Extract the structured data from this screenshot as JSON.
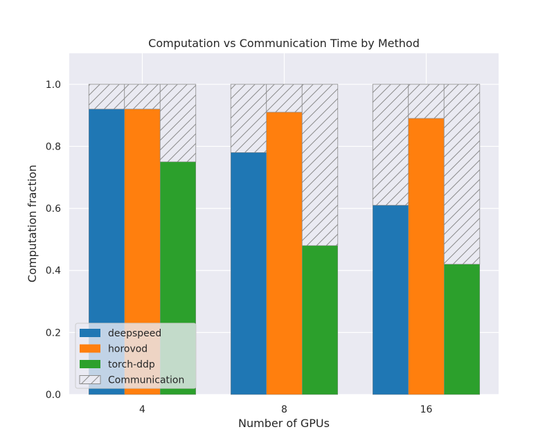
{
  "chart_data": {
    "type": "bar",
    "title": "Computation vs Communication Time by Method",
    "xlabel": "Number of GPUs",
    "ylabel": "Computation fraction",
    "categories": [
      "4",
      "8",
      "16"
    ],
    "ylim": [
      0,
      1.1
    ],
    "yticks": [
      "0.0",
      "0.2",
      "0.4",
      "0.6",
      "0.8",
      "1.0"
    ],
    "grid": true,
    "legend_position": "lower-left",
    "series": [
      {
        "name": "deepspeed",
        "color": "#1f77b4",
        "values": [
          0.92,
          0.78,
          0.61
        ]
      },
      {
        "name": "horovod",
        "color": "#ff7f0e",
        "values": [
          0.92,
          0.91,
          0.89
        ]
      },
      {
        "name": "torch-ddp",
        "color": "#2ca02c",
        "values": [
          0.75,
          0.48,
          0.42
        ]
      }
    ],
    "stacked_total": 1.0,
    "remainder_name": "Communication",
    "remainder_style": "hatched"
  }
}
